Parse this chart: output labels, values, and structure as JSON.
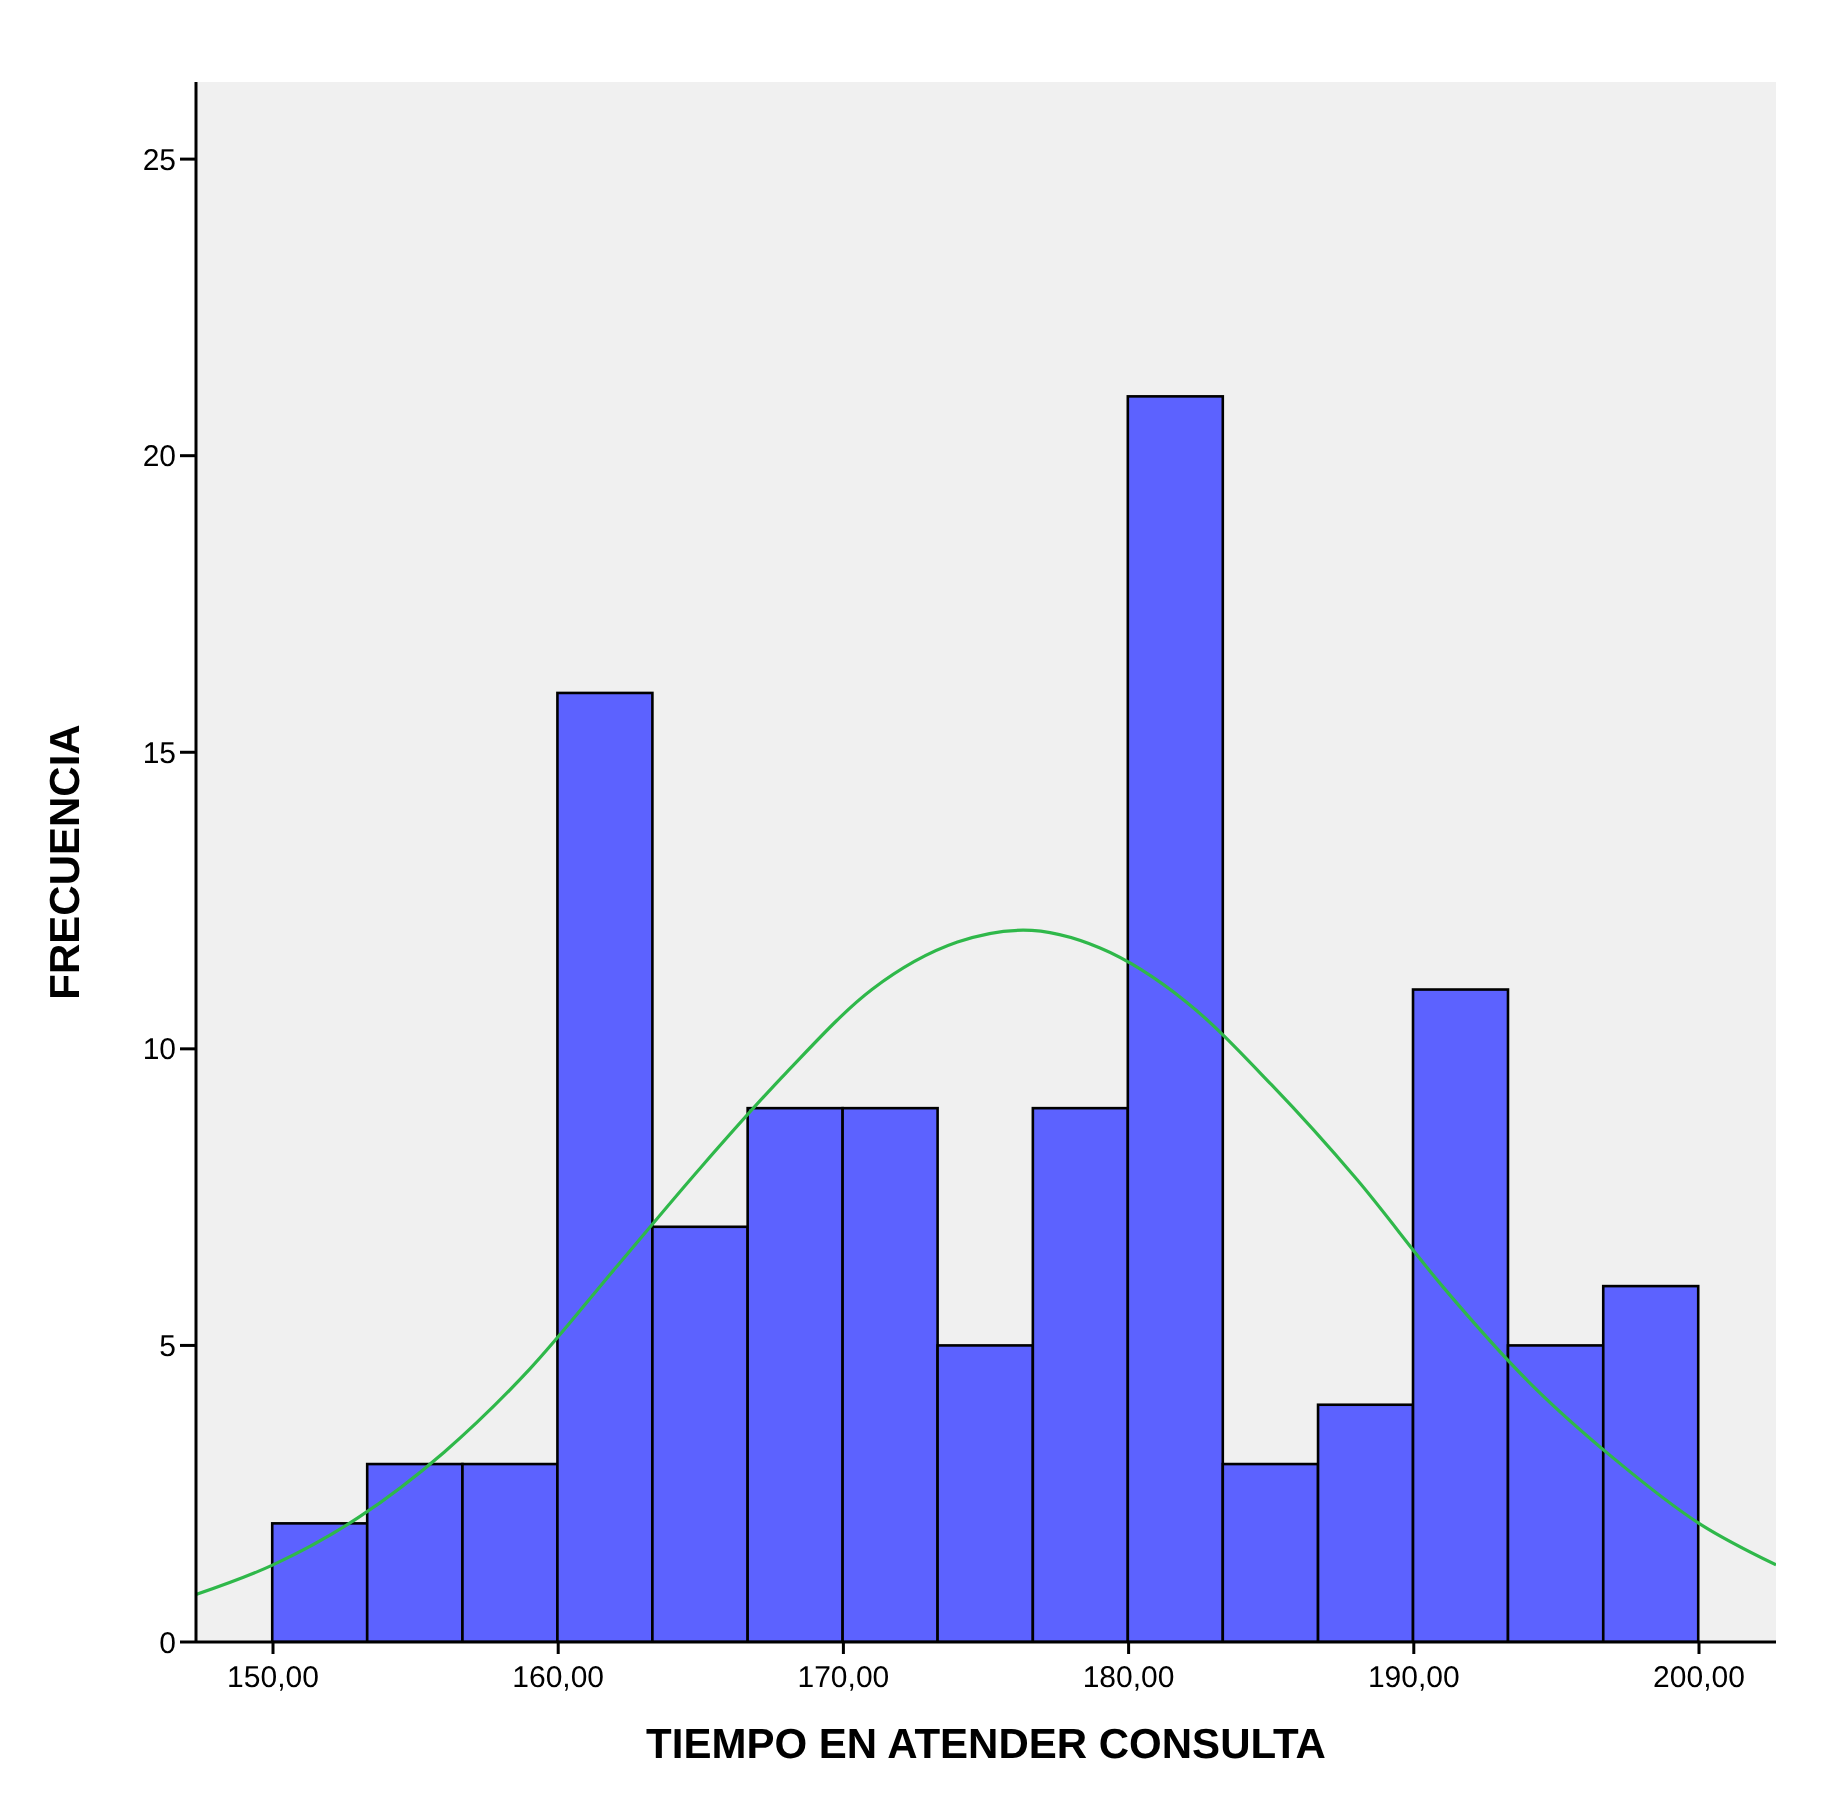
{
  "chart_data": {
    "type": "histogram",
    "xlabel": "TIEMPO EN ATENDER CONSULTA",
    "ylabel": "FRECUENCIA",
    "bins": [
      150,
      153.33,
      156.67,
      160,
      163.33,
      166.67,
      170,
      173.33,
      176.67,
      180,
      183.33,
      186.67,
      190,
      193.33,
      196.67,
      200
    ],
    "values": [
      2,
      3,
      3,
      16,
      7,
      9,
      9,
      5,
      9,
      21,
      3,
      4,
      11,
      5,
      6
    ],
    "color": "#5c62ff",
    "series": [
      {
        "type": "line",
        "color": "#2fb84a",
        "x": [
          147.3,
          150,
          153,
          156,
          159,
          162,
          165,
          168,
          171,
          174,
          176.3,
          179,
          182,
          185,
          188,
          191,
          194,
          197,
          200,
          202.7
        ],
        "values": [
          0.8,
          1.3,
          2.1,
          3.2,
          4.6,
          6.3,
          8.0,
          9.6,
          11.0,
          11.8,
          12.0,
          11.7,
          10.8,
          9.4,
          7.8,
          6.0,
          4.4,
          3.1,
          2.0,
          1.3
        ]
      }
    ],
    "xlim": [
      147.3,
      202.7
    ],
    "xticks": [
      {
        "value": 150,
        "label": "150,00"
      },
      {
        "value": 160,
        "label": "160,00"
      },
      {
        "value": 170,
        "label": "170,00"
      },
      {
        "value": 180,
        "label": "180,00"
      },
      {
        "value": 190,
        "label": "190,00"
      },
      {
        "value": 200,
        "label": "200,00"
      }
    ],
    "ylim": [
      0,
      26.3
    ],
    "yticks": [
      0,
      5,
      10,
      15,
      20,
      25
    ],
    "grid": false,
    "legend": false,
    "marker": "none",
    "line_style": "solid"
  }
}
